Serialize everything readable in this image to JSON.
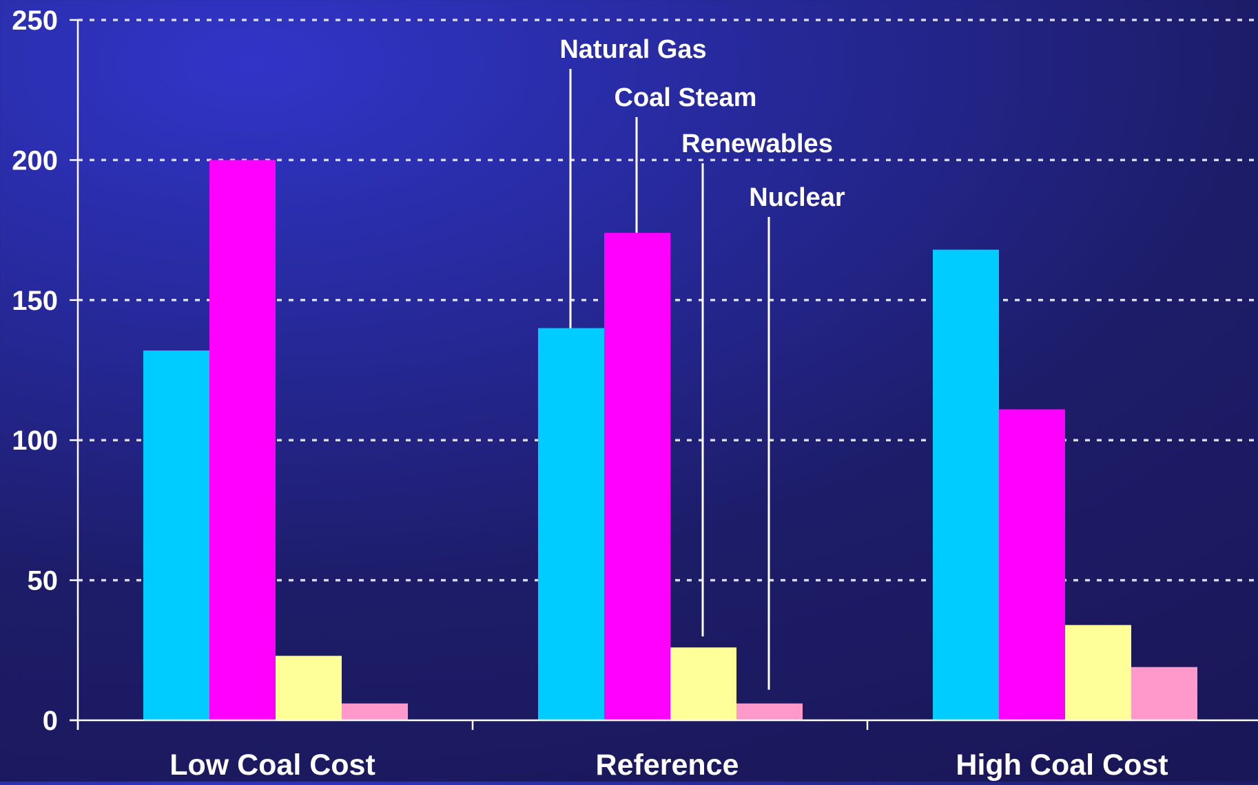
{
  "chart_data": {
    "type": "bar",
    "title": "",
    "xlabel": "",
    "ylabel": "",
    "categories": [
      "Low Coal Cost",
      "Reference",
      "High Coal Cost"
    ],
    "series": [
      {
        "name": "Natural Gas",
        "color": "#00ccff",
        "values": [
          132,
          140,
          168
        ]
      },
      {
        "name": "Coal Steam",
        "color": "#ff00ff",
        "values": [
          200,
          174,
          111
        ]
      },
      {
        "name": "Renewables",
        "color": "#ffff99",
        "values": [
          23,
          26,
          34
        ]
      },
      {
        "name": "Nuclear",
        "color": "#ff99cc",
        "values": [
          6,
          6,
          19
        ]
      }
    ],
    "ylim": [
      0,
      250
    ],
    "yticks": [
      0,
      50,
      100,
      150,
      200,
      250
    ],
    "grid": true,
    "legend": "callout labels with leader lines above the Reference group"
  },
  "colors": {
    "background": "#1f1f73",
    "axis": "#ffffff",
    "gridline": "#d9d9ef",
    "text": "#ffffff"
  }
}
